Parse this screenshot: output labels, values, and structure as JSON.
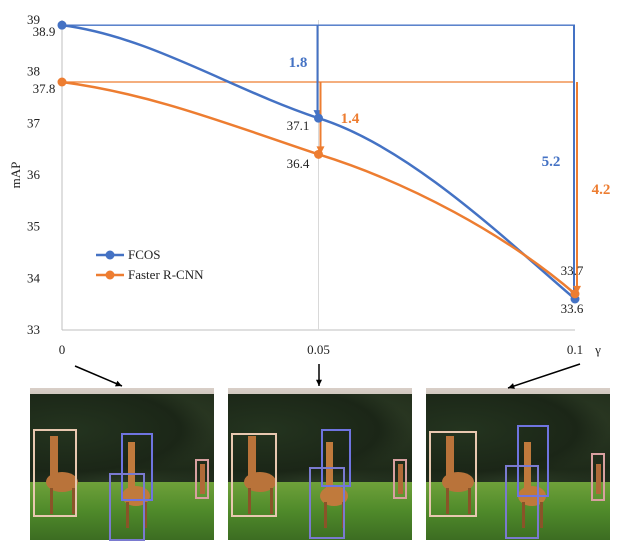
{
  "chart_data": {
    "type": "line",
    "ylabel": "mAP",
    "xlabel": "γ",
    "x_ticks": [
      "0",
      "0.05",
      "0.1"
    ],
    "x_values": [
      0,
      0.05,
      0.1
    ],
    "ylim": [
      33,
      39
    ],
    "y_ticks": [
      "33",
      "34",
      "35",
      "36",
      "37",
      "38",
      "39"
    ],
    "series": [
      {
        "name": "FCOS",
        "color": "#4472c4",
        "points": [
          [
            0,
            38.9
          ],
          [
            0.05,
            37.1
          ],
          [
            0.1,
            33.6
          ]
        ],
        "point_labels": [
          "38.9",
          "37.1",
          "33.6"
        ]
      },
      {
        "name": "Faster R-CNN",
        "color": "#ed7d31",
        "points": [
          [
            0,
            37.8
          ],
          [
            0.05,
            36.4
          ],
          [
            0.1,
            33.7
          ]
        ],
        "point_labels": [
          "37.8",
          "36.4",
          "33.7"
        ]
      }
    ],
    "drops": [
      {
        "series": "FCOS",
        "at_x": 0.05,
        "value": "1.8"
      },
      {
        "series": "Faster R-CNN",
        "at_x": 0.05,
        "value": "1.4"
      },
      {
        "series": "FCOS",
        "at_x": 0.1,
        "value": "5.2"
      },
      {
        "series": "Faster R-CNN",
        "at_x": 0.1,
        "value": "4.2"
      }
    ],
    "legend": "center-left",
    "grid": false
  },
  "panels": [
    {
      "name": "detection-example-gamma-0"
    },
    {
      "name": "detection-example-gamma-0.05"
    },
    {
      "name": "detection-example-gamma-0.1"
    }
  ]
}
